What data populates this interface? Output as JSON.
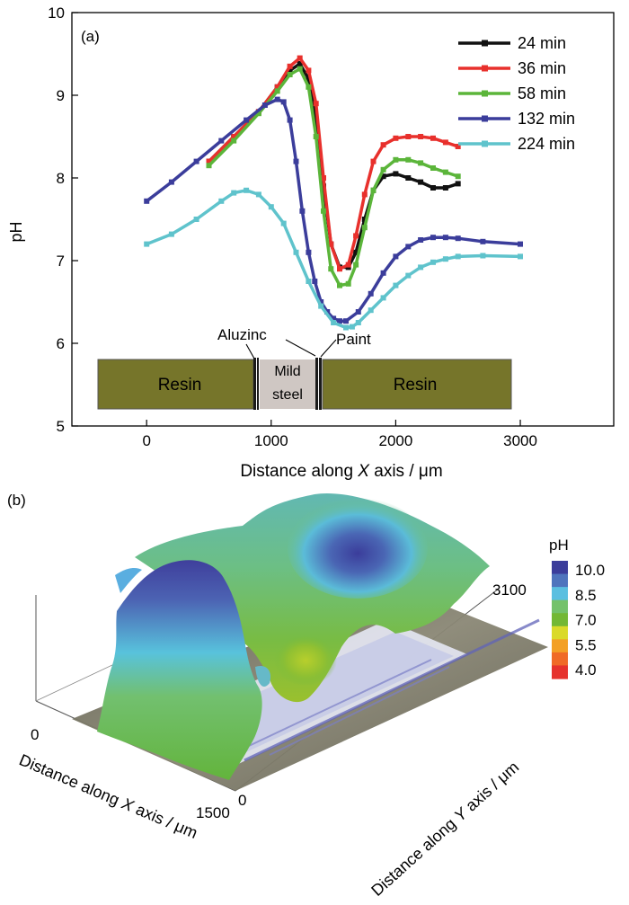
{
  "chart_data": [
    {
      "type": "line",
      "panel_label": "(a)",
      "xlabel_prefix": "Distance along ",
      "xlabel_var": "X",
      "xlabel_suffix": " axis / μm",
      "ylabel": "pH",
      "xlim": [
        -600,
        3750
      ],
      "ylim": [
        5,
        10
      ],
      "xticks": [
        "0",
        "1000",
        "2000",
        "3000"
      ],
      "xtick_values": [
        0,
        1000,
        2000,
        3000
      ],
      "yticks": [
        "5",
        "6",
        "7",
        "8",
        "9",
        "10"
      ],
      "ytick_values": [
        5,
        6,
        7,
        8,
        9,
        10
      ],
      "series": [
        {
          "name": "24 min",
          "color": "#111111",
          "x": [
            500,
            700,
            900,
            1050,
            1150,
            1230,
            1300,
            1360,
            1420,
            1480,
            1550,
            1620,
            1680,
            1750,
            1820,
            1900,
            2000,
            2100,
            2200,
            2300,
            2400,
            2500
          ],
          "y": [
            8.2,
            8.5,
            8.8,
            9.1,
            9.3,
            9.38,
            9.2,
            8.7,
            7.9,
            7.2,
            6.92,
            6.92,
            7.1,
            7.5,
            7.85,
            8.02,
            8.05,
            8.0,
            7.95,
            7.88,
            7.88,
            7.93
          ]
        },
        {
          "name": "36 min",
          "color": "#e8302c",
          "x": [
            500,
            700,
            900,
            1050,
            1150,
            1230,
            1300,
            1360,
            1420,
            1480,
            1550,
            1620,
            1680,
            1750,
            1820,
            1900,
            2000,
            2100,
            2200,
            2300,
            2400,
            2500
          ],
          "y": [
            8.2,
            8.5,
            8.8,
            9.1,
            9.35,
            9.45,
            9.3,
            8.9,
            8.0,
            7.2,
            6.9,
            6.95,
            7.3,
            7.8,
            8.2,
            8.4,
            8.48,
            8.5,
            8.5,
            8.48,
            8.43,
            8.38
          ]
        },
        {
          "name": "58 min",
          "color": "#5bb53a",
          "x": [
            500,
            700,
            900,
            1050,
            1150,
            1230,
            1300,
            1360,
            1420,
            1480,
            1550,
            1620,
            1680,
            1750,
            1820,
            1900,
            2000,
            2100,
            2200,
            2300,
            2400,
            2500
          ],
          "y": [
            8.15,
            8.45,
            8.78,
            9.05,
            9.25,
            9.32,
            9.1,
            8.5,
            7.6,
            6.9,
            6.7,
            6.72,
            6.95,
            7.4,
            7.85,
            8.1,
            8.22,
            8.22,
            8.18,
            8.12,
            8.07,
            8.02
          ]
        },
        {
          "name": "132 min",
          "color": "#3b3d9b",
          "x": [
            0,
            200,
            400,
            600,
            800,
            950,
            1050,
            1100,
            1150,
            1200,
            1250,
            1300,
            1350,
            1400,
            1450,
            1500,
            1550,
            1600,
            1700,
            1800,
            1900,
            2000,
            2100,
            2200,
            2300,
            2400,
            2500,
            2700,
            3000
          ],
          "y": [
            7.72,
            7.95,
            8.2,
            8.45,
            8.7,
            8.88,
            8.95,
            8.92,
            8.7,
            8.2,
            7.6,
            7.1,
            6.75,
            6.5,
            6.38,
            6.3,
            6.27,
            6.27,
            6.38,
            6.6,
            6.85,
            7.05,
            7.17,
            7.25,
            7.28,
            7.28,
            7.27,
            7.23,
            7.2
          ]
        },
        {
          "name": "224 min",
          "color": "#5fc3cc",
          "x": [
            0,
            200,
            400,
            600,
            700,
            800,
            900,
            1000,
            1100,
            1200,
            1300,
            1400,
            1500,
            1600,
            1650,
            1700,
            1800,
            1900,
            2000,
            2100,
            2200,
            2300,
            2400,
            2500,
            2700,
            3000
          ],
          "y": [
            7.2,
            7.32,
            7.5,
            7.72,
            7.82,
            7.85,
            7.8,
            7.65,
            7.45,
            7.1,
            6.75,
            6.45,
            6.25,
            6.19,
            6.2,
            6.25,
            6.4,
            6.55,
            6.7,
            6.82,
            6.92,
            6.98,
            7.02,
            7.05,
            7.06,
            7.05
          ]
        }
      ],
      "sample_schematic": {
        "resin_left_label": "Resin",
        "resin_right_label": "Resin",
        "steel_label_line1": "Mild",
        "steel_label_line2": "steel",
        "aluzinc_label": "Aluzinc",
        "paint_label": "Paint",
        "resin_color": "#76752a",
        "steel_color": "#cfc7c3"
      }
    },
    {
      "type": "surface3d",
      "panel_label": "(b)",
      "x_axis_label_prefix": "Distance along ",
      "x_axis_label_var": "X",
      "x_axis_label_suffix": " axis / μm",
      "y_axis_label_prefix": "Distance along ",
      "y_axis_label_var": "Y",
      "y_axis_label_suffix": " axis / μm",
      "x_tick_start": "0",
      "x_tick_end": "1500",
      "y_tick_start": "0",
      "y_tick_end": "3100",
      "colorbar_title": "pH",
      "colorbar_ticks": [
        "10.0",
        "8.5",
        "7.0",
        "5.5",
        "4.0"
      ],
      "colorbar_colors": [
        "#3b3d9b",
        "#4f74bd",
        "#5bbfe0",
        "#74c26b",
        "#73b834",
        "#dada2a",
        "#f3a025",
        "#f06a26",
        "#e6322c"
      ]
    }
  ]
}
